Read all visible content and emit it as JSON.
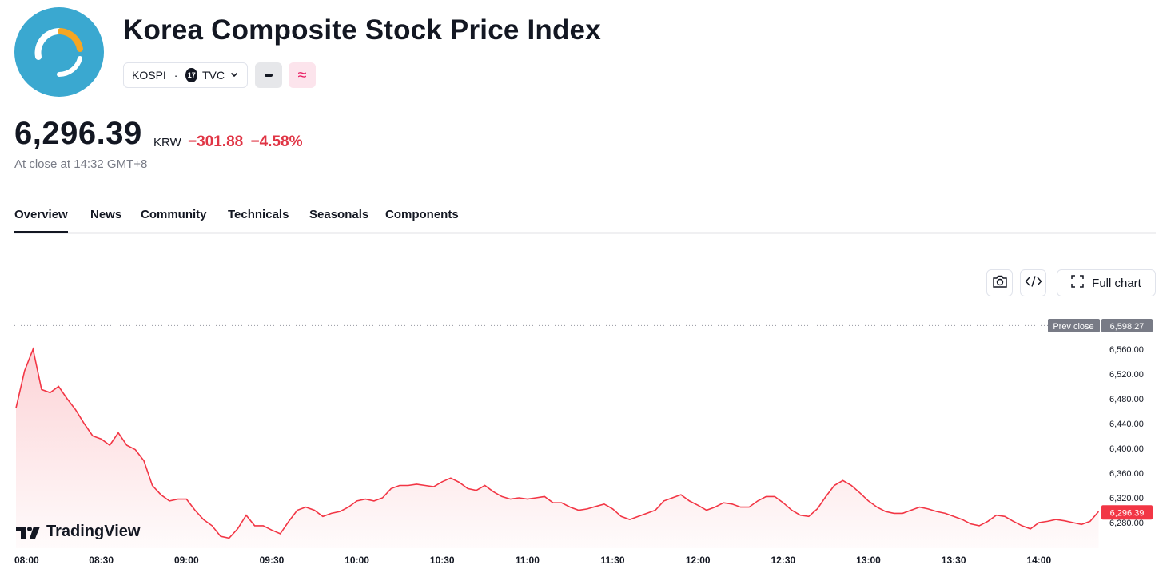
{
  "header": {
    "title": "Korea Composite Stock Price Index",
    "symbol": "KOSPI",
    "separator": "·",
    "exchange": "TVC",
    "exchange_logo": "17",
    "approx_symbol": "≈"
  },
  "quote": {
    "price": "6,296.39",
    "currency": "KRW",
    "change": "−301.88",
    "change_percent": "−4.58%",
    "status": "At close at 14:32 GMT+8"
  },
  "tabs": [
    {
      "label": "Overview",
      "active": true
    },
    {
      "label": "News"
    },
    {
      "label": "Community"
    },
    {
      "label": "Technicals"
    },
    {
      "label": "Seasonals"
    },
    {
      "label": "Components"
    }
  ],
  "toolbar": {
    "full_chart_label": "Full chart",
    "snapshot_icon": "camera-icon",
    "embed_icon": "code-icon",
    "fullscreen_icon": "expand-icon"
  },
  "chart_data": {
    "type": "area",
    "prev_close_label": "Prev close",
    "prev_close": 6598.27,
    "prev_close_text": "6,598.27",
    "last_text": "6,296.39",
    "last": 6296.39,
    "y_ticks": [
      6280,
      6320,
      6360,
      6400,
      6440,
      6480,
      6520,
      6560
    ],
    "y_tick_labels": [
      "6,280.00",
      "6,320.00",
      "6,360.00",
      "6,400.00",
      "6,440.00",
      "6,480.00",
      "6,520.00",
      "6,560.00"
    ],
    "x_ticks": [
      "08:00",
      "08:30",
      "09:00",
      "09:30",
      "10:00",
      "10:30",
      "11:00",
      "11:30",
      "12:00",
      "12:30",
      "13:00",
      "13:30",
      "14:00"
    ],
    "series": [
      {
        "color": "#f23645",
        "x": [
          "08:00",
          "08:03",
          "08:06",
          "08:09",
          "08:12",
          "08:15",
          "08:18",
          "08:21",
          "08:24",
          "08:27",
          "08:30",
          "08:33",
          "08:36",
          "08:39",
          "08:42",
          "08:45",
          "08:48",
          "08:51",
          "08:54",
          "08:57",
          "09:00",
          "09:03",
          "09:06",
          "09:09",
          "09:12",
          "09:15",
          "09:18",
          "09:21",
          "09:24",
          "09:27",
          "09:30",
          "09:33",
          "09:36",
          "09:39",
          "09:42",
          "09:45",
          "09:48",
          "09:51",
          "09:54",
          "09:57",
          "10:00",
          "10:03",
          "10:06",
          "10:09",
          "10:12",
          "10:15",
          "10:18",
          "10:21",
          "10:24",
          "10:27",
          "10:30",
          "10:33",
          "10:36",
          "10:39",
          "10:42",
          "10:45",
          "10:48",
          "10:51",
          "10:54",
          "10:57",
          "11:00",
          "11:03",
          "11:06",
          "11:09",
          "11:12",
          "11:15",
          "11:18",
          "11:21",
          "11:24",
          "11:27",
          "11:30",
          "11:33",
          "11:36",
          "11:39",
          "11:42",
          "11:45",
          "11:48",
          "11:51",
          "11:54",
          "11:57",
          "12:00",
          "12:03",
          "12:06",
          "12:09",
          "12:12",
          "12:15",
          "12:18",
          "12:21",
          "12:24",
          "12:27",
          "12:30",
          "12:33",
          "12:36",
          "12:39",
          "12:42",
          "12:45",
          "12:48",
          "12:51",
          "12:54",
          "12:57",
          "13:00",
          "13:03",
          "13:06",
          "13:09",
          "13:12",
          "13:15",
          "13:18",
          "13:21",
          "13:24",
          "13:27",
          "13:30",
          "13:33",
          "13:36",
          "13:39",
          "13:42",
          "13:45",
          "13:48",
          "13:51",
          "13:54",
          "13:57",
          "14:00",
          "14:03",
          "14:06",
          "14:09",
          "14:12",
          "14:15",
          "14:18",
          "14:21"
        ],
        "values": [
          6465,
          6525,
          6560,
          6495,
          6490,
          6500,
          6480,
          6462,
          6440,
          6420,
          6415,
          6405,
          6425,
          6405,
          6398,
          6380,
          6340,
          6325,
          6315,
          6318,
          6318,
          6300,
          6285,
          6275,
          6258,
          6255,
          6270,
          6292,
          6275,
          6275,
          6268,
          6262,
          6282,
          6300,
          6305,
          6300,
          6290,
          6295,
          6298,
          6305,
          6315,
          6318,
          6315,
          6320,
          6335,
          6340,
          6340,
          6342,
          6340,
          6338,
          6346,
          6352,
          6345,
          6335,
          6332,
          6340,
          6330,
          6322,
          6318,
          6320,
          6318,
          6320,
          6322,
          6312,
          6312,
          6305,
          6300,
          6302,
          6306,
          6310,
          6302,
          6290,
          6285,
          6290,
          6295,
          6300,
          6315,
          6320,
          6325,
          6315,
          6308,
          6300,
          6305,
          6312,
          6310,
          6305,
          6305,
          6315,
          6322,
          6322,
          6312,
          6300,
          6292,
          6290,
          6302,
          6322,
          6340,
          6348,
          6340,
          6328,
          6315,
          6305,
          6298,
          6295,
          6295,
          6300,
          6305,
          6302,
          6298,
          6295,
          6290,
          6285,
          6278,
          6275,
          6282,
          6292,
          6290,
          6282,
          6275,
          6270,
          6280,
          6282,
          6285,
          6283,
          6280,
          6277,
          6282,
          6298
        ]
      }
    ]
  }
}
